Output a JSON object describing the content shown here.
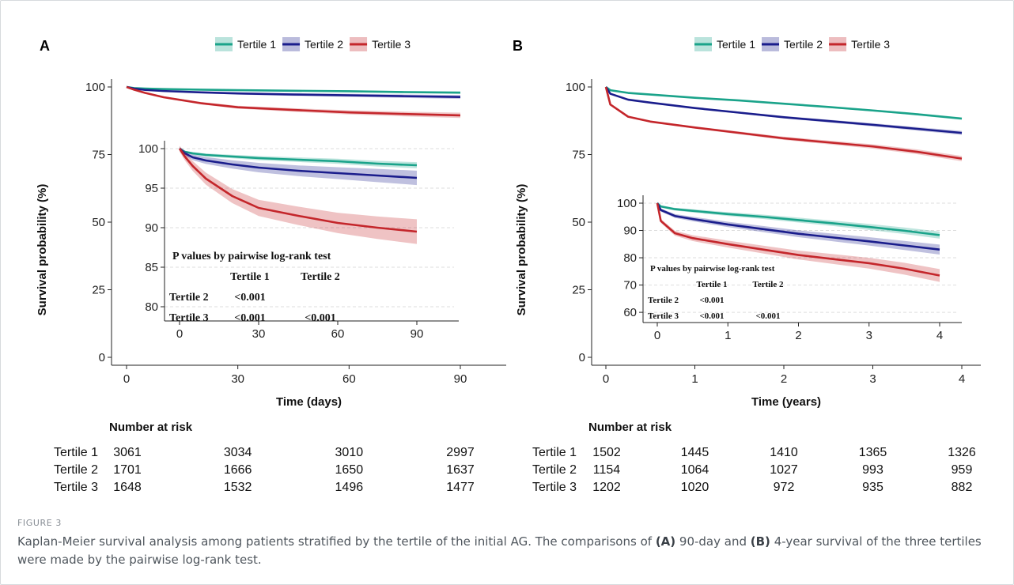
{
  "figure_label": "FIGURE 3",
  "caption": {
    "t1": "Kaplan-Meier survival analysis among patients stratified by the tertile of the initial AG. The comparisons of ",
    "b1": "(A)",
    "t2": " 90-day and ",
    "b2": "(B)",
    "t3": " 4-year survival of the three tertiles were made by the pairwise log-rank test."
  },
  "colors": {
    "tertile1": "#1aa38a",
    "tertile2": "#1a1d8c",
    "tertile3": "#c4262b"
  },
  "chart_data": [
    {
      "type": "line",
      "panel": "A",
      "xlabel": "Time (days)",
      "ylabel": "Survival probability (%)",
      "xlim": [
        0,
        90
      ],
      "ylim": [
        0,
        100
      ],
      "xticks": [
        "0",
        "30",
        "60",
        "90"
      ],
      "yticks": [
        "0",
        "25",
        "50",
        "75",
        "100"
      ],
      "legend": {
        "position": "top",
        "entries": [
          "Tertile 1",
          "Tertile 2",
          "Tertile 3"
        ]
      },
      "series": [
        {
          "name": "Tertile 1",
          "color": "#1aa38a",
          "x": [
            0,
            2,
            5,
            10,
            20,
            30,
            45,
            60,
            75,
            90
          ],
          "y": [
            100,
            99.6,
            99.4,
            99.2,
            99.0,
            98.8,
            98.6,
            98.4,
            98.1,
            97.9
          ]
        },
        {
          "name": "Tertile 2",
          "color": "#1a1d8c",
          "x": [
            0,
            2,
            5,
            10,
            20,
            30,
            45,
            60,
            75,
            90
          ],
          "y": [
            100,
            99.4,
            98.9,
            98.5,
            98.0,
            97.6,
            97.2,
            96.9,
            96.6,
            96.3
          ]
        },
        {
          "name": "Tertile 3",
          "color": "#c4262b",
          "x": [
            0,
            2,
            5,
            10,
            20,
            30,
            45,
            60,
            75,
            90
          ],
          "y": [
            100,
            99.0,
            97.8,
            96.2,
            94.0,
            92.5,
            91.5,
            90.6,
            90.0,
            89.5
          ]
        }
      ],
      "inset": {
        "xlim": [
          0,
          90
        ],
        "ylim": [
          79,
          100
        ],
        "xticks": [
          "0",
          "30",
          "60",
          "90"
        ],
        "yticks": [
          "80",
          "85",
          "90",
          "95",
          "100"
        ],
        "band_halfwidth": [
          0.3,
          0.7,
          1.2
        ]
      },
      "pvalue_table": {
        "title": "P values by pairwise log-rank test",
        "col_headers": [
          "Tertile 1",
          "Tertile 2"
        ],
        "rows": [
          {
            "label": "Tertile 2",
            "values": [
              "<0.001",
              ""
            ]
          },
          {
            "label": "Tertile 3",
            "values": [
              "<0.001",
              "<0.001"
            ]
          }
        ]
      },
      "risk_table": {
        "title": "Number at risk",
        "rows": [
          {
            "label": "Tertile 1",
            "values": [
              "3061",
              "3034",
              "3010",
              "2997"
            ]
          },
          {
            "label": "Tertile 2",
            "values": [
              "1701",
              "1666",
              "1650",
              "1637"
            ]
          },
          {
            "label": "Tertile 3",
            "values": [
              "1648",
              "1532",
              "1496",
              "1477"
            ]
          }
        ]
      }
    },
    {
      "type": "line",
      "panel": "B",
      "xlabel": "Time (years)",
      "ylabel": "Survival probability (%)",
      "xlim": [
        0,
        4
      ],
      "ylim": [
        0,
        100
      ],
      "xticks": [
        "0",
        "1",
        "2",
        "3",
        "4"
      ],
      "yticks": [
        "0",
        "25",
        "50",
        "75",
        "100"
      ],
      "legend": {
        "position": "top",
        "entries": [
          "Tertile 1",
          "Tertile 2",
          "Tertile 3"
        ]
      },
      "series": [
        {
          "name": "Tertile 1",
          "color": "#1aa38a",
          "x": [
            0,
            0.05,
            0.25,
            0.5,
            1,
            1.5,
            2,
            2.5,
            3,
            3.5,
            4
          ],
          "y": [
            100,
            98.8,
            97.8,
            97.2,
            96,
            95,
            93.8,
            92.6,
            91.3,
            89.9,
            88.3
          ]
        },
        {
          "name": "Tertile 2",
          "color": "#1a1d8c",
          "x": [
            0,
            0.05,
            0.25,
            0.5,
            1,
            1.5,
            2,
            2.5,
            3,
            3.5,
            4
          ],
          "y": [
            100,
            97.5,
            95.3,
            94.2,
            92.2,
            90.5,
            88.8,
            87.4,
            86,
            84.5,
            83
          ]
        },
        {
          "name": "Tertile 3",
          "color": "#c4262b",
          "x": [
            0,
            0.05,
            0.25,
            0.5,
            1,
            1.5,
            2,
            2.5,
            3,
            3.5,
            4
          ],
          "y": [
            100,
            93.5,
            89,
            87.2,
            85,
            83,
            81,
            79.5,
            78,
            76,
            73.5
          ]
        }
      ],
      "inset": {
        "xlim": [
          0,
          4
        ],
        "ylim": [
          58,
          100
        ],
        "xticks": [
          "0",
          "1",
          "2",
          "3",
          "4"
        ],
        "yticks": [
          "60",
          "70",
          "80",
          "90",
          "100"
        ],
        "band_halfwidth": [
          1.0,
          1.4,
          1.8
        ]
      },
      "pvalue_table": {
        "title": "P values by pairwise log-rank test",
        "col_headers": [
          "Tertile 1",
          "Tertile 2"
        ],
        "rows": [
          {
            "label": "Tertile 2",
            "values": [
              "<0.001",
              ""
            ]
          },
          {
            "label": "Tertile 3",
            "values": [
              "<0.001",
              "<0.001"
            ]
          }
        ]
      },
      "risk_table": {
        "title": "Number at risk",
        "rows": [
          {
            "label": "Tertile 1",
            "values": [
              "1502",
              "1445",
              "1410",
              "1365",
              "1326"
            ]
          },
          {
            "label": "Tertile 2",
            "values": [
              "1154",
              "1064",
              "1027",
              "993",
              "959"
            ]
          },
          {
            "label": "Tertile 3",
            "values": [
              "1202",
              "1020",
              "972",
              "935",
              "882"
            ]
          }
        ]
      }
    }
  ]
}
